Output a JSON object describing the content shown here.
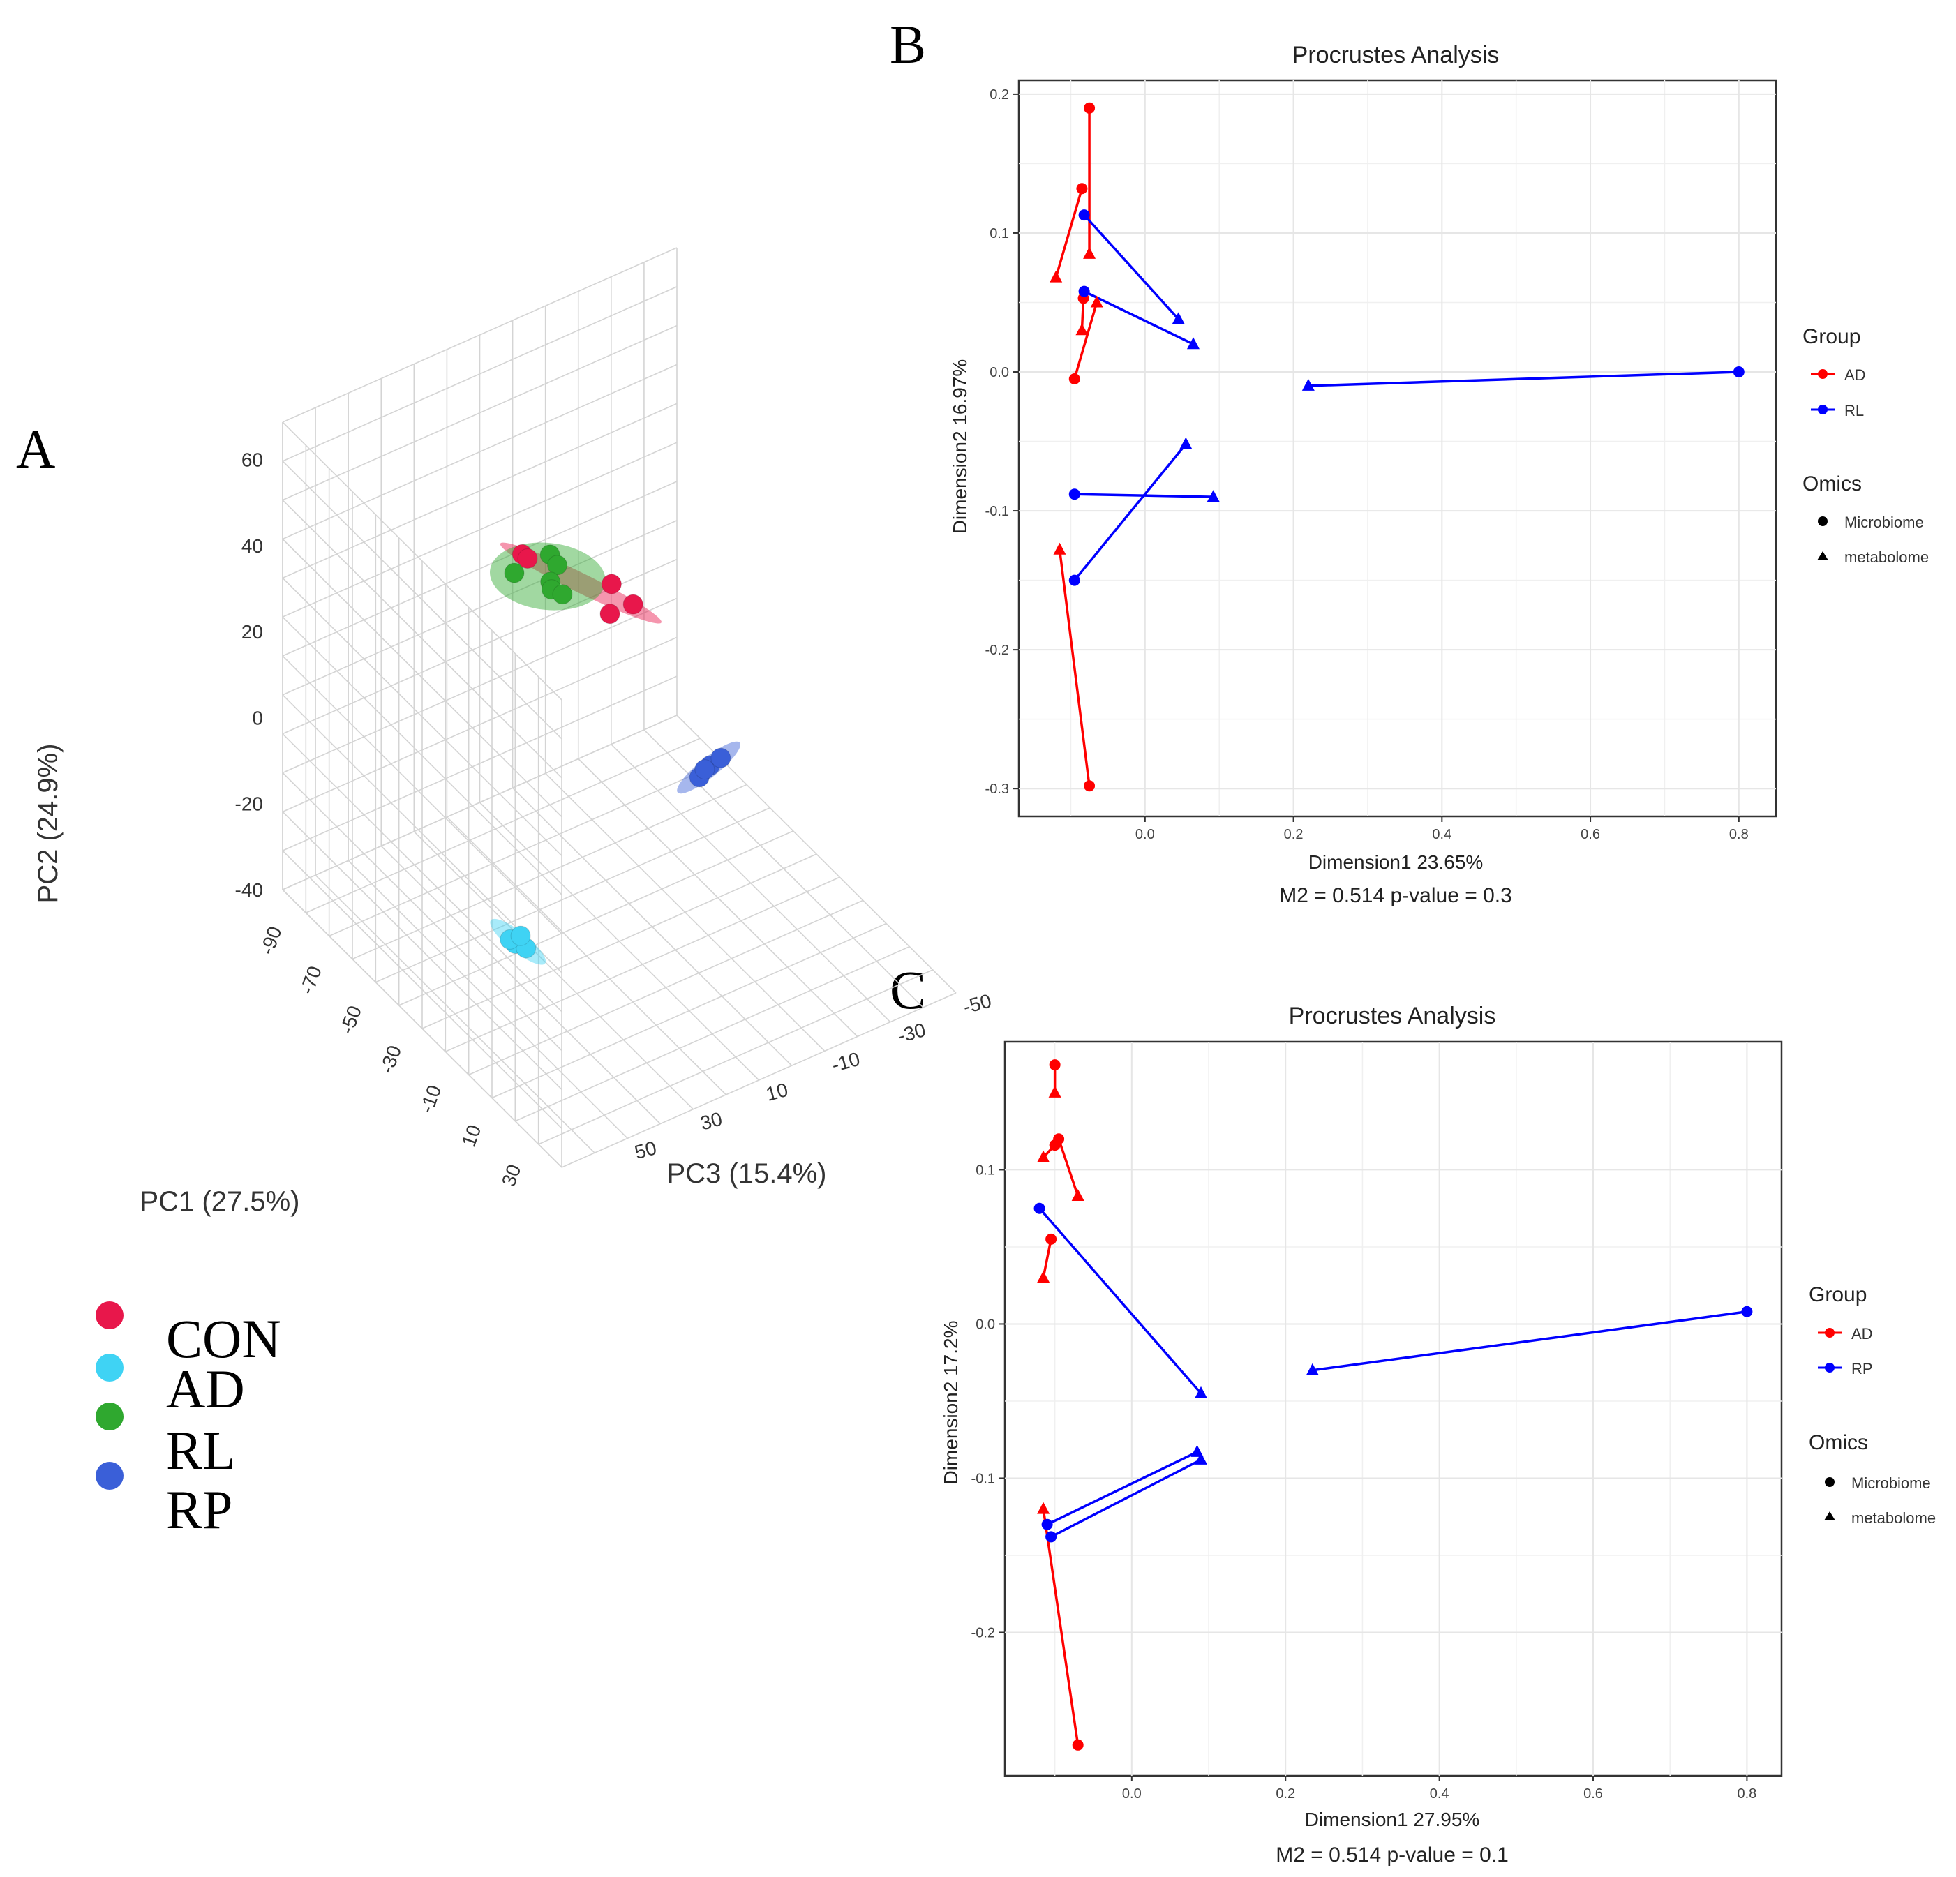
{
  "panel_labels": {
    "a": "A",
    "b": "B",
    "c": "C"
  },
  "colors": {
    "con": "#e8174b",
    "ad": "#3fd3f4",
    "rl": "#2fa82f",
    "rp": "#3a5fd8",
    "red": "#ff0000",
    "blue": "#0000ff",
    "grid": "#e6e6e6",
    "axis": "#333333"
  },
  "chart_data": [
    {
      "type": "scatter3d",
      "id": "pca",
      "title": "",
      "xlabel": "PC1 (27.5%)",
      "ylabel": "PC2 (24.9%)",
      "zlabel": "PC3 (15.4%)",
      "pc1_ticks": [
        "-90",
        "-70",
        "-50",
        "-30",
        "-10",
        "10",
        "30"
      ],
      "pc2_ticks": [
        "60",
        "40",
        "20",
        "0",
        "-20",
        "-40"
      ],
      "pc3_ticks": [
        "-50",
        "-30",
        "-10",
        "10",
        "30",
        "50"
      ],
      "legend": [
        "CON",
        "AD",
        "RL",
        "RP"
      ],
      "series": [
        {
          "name": "CON",
          "points": [
            [
              -85,
              20,
              -15
            ],
            [
              -84,
              19,
              -16
            ],
            [
              -55,
              22,
              -25
            ],
            [
              -50,
              18,
              -22
            ],
            [
              -45,
              21,
              -26
            ]
          ]
        },
        {
          "name": "AD",
          "points": [
            [
              10,
              -15,
              35
            ],
            [
              12,
              -16,
              33
            ],
            [
              9,
              -14,
              36
            ],
            [
              11,
              -13,
              34
            ]
          ]
        },
        {
          "name": "RL",
          "points": [
            [
              -40,
              45,
              10
            ],
            [
              -30,
              52,
              5
            ],
            [
              -20,
              55,
              8
            ],
            [
              -10,
              58,
              15
            ],
            [
              -35,
              40,
              2
            ],
            [
              -25,
              44,
              4
            ]
          ]
        },
        {
          "name": "RP",
          "points": [
            [
              -10,
              -5,
              -30
            ],
            [
              -12,
              -8,
              -28
            ],
            [
              -8,
              -3,
              -32
            ],
            [
              -11,
              -6,
              -29
            ]
          ]
        }
      ]
    },
    {
      "type": "scatter",
      "id": "procrustes_rl",
      "title": "Procrustes Analysis",
      "xlabel": "Dimension1 23.65%",
      "ylabel": "Dimension2 16.97%",
      "subtitle": "M2 = 0.514  p-value = 0.3",
      "xlim": [
        -0.17,
        0.85
      ],
      "ylim": [
        -0.32,
        0.21
      ],
      "xticks": [
        0.0,
        0.2,
        0.4,
        0.6,
        0.8
      ],
      "xtick_labels": [
        "0.0",
        "0.2",
        "0.4",
        "0.6",
        "0.8"
      ],
      "yticks": [
        0.2,
        0.1,
        0.0,
        -0.1,
        -0.2,
        -0.3
      ],
      "ytick_labels": [
        "0.2",
        "0.1",
        "0.0",
        "-0.1",
        "-0.2",
        "-0.3"
      ],
      "legend": {
        "group_title": "Group",
        "groups": [
          "AD",
          "RL"
        ],
        "omics_title": "Omics",
        "omics": [
          "Microbiome",
          "metabolome"
        ]
      },
      "pairs": [
        {
          "group": "AD",
          "microbiome": [
            -0.075,
            0.19
          ],
          "metabolome": [
            -0.075,
            0.085
          ]
        },
        {
          "group": "AD",
          "microbiome": [
            -0.085,
            0.132
          ],
          "metabolome": [
            -0.12,
            0.068
          ]
        },
        {
          "group": "AD",
          "microbiome": [
            -0.083,
            0.053
          ],
          "metabolome": [
            -0.085,
            0.03
          ]
        },
        {
          "group": "AD",
          "microbiome": [
            -0.095,
            -0.005
          ],
          "metabolome": [
            -0.065,
            0.05
          ]
        },
        {
          "group": "AD",
          "microbiome": [
            -0.075,
            -0.298
          ],
          "metabolome": [
            -0.115,
            -0.128
          ]
        },
        {
          "group": "RL",
          "microbiome": [
            -0.082,
            0.113
          ],
          "metabolome": [
            0.045,
            0.038
          ]
        },
        {
          "group": "RL",
          "microbiome": [
            -0.082,
            0.058
          ],
          "metabolome": [
            0.065,
            0.02
          ]
        },
        {
          "group": "RL",
          "microbiome": [
            0.8,
            0.0
          ],
          "metabolome": [
            0.22,
            -0.01
          ]
        },
        {
          "group": "RL",
          "microbiome": [
            -0.095,
            -0.088
          ],
          "metabolome": [
            0.092,
            -0.09
          ]
        },
        {
          "group": "RL",
          "microbiome": [
            -0.095,
            -0.15
          ],
          "metabolome": [
            0.055,
            -0.052
          ]
        }
      ]
    },
    {
      "type": "scatter",
      "id": "procrustes_rp",
      "title": "Procrustes Analysis",
      "xlabel": "Dimension1 27.95%",
      "ylabel": "Dimension2 17.2%",
      "subtitle": "M2 = 0.514  p-value = 0.1",
      "xlim": [
        -0.165,
        0.845
      ],
      "ylim": [
        -0.293,
        0.183
      ],
      "xticks": [
        0.0,
        0.2,
        0.4,
        0.6,
        0.8
      ],
      "xtick_labels": [
        "0.0",
        "0.2",
        "0.4",
        "0.6",
        "0.8"
      ],
      "yticks": [
        0.1,
        0.0,
        -0.1,
        -0.2
      ],
      "ytick_labels": [
        "0.1",
        "0.0",
        "-0.1",
        "-0.2"
      ],
      "legend": {
        "group_title": "Group",
        "groups": [
          "AD",
          "RP"
        ],
        "omics_title": "Omics",
        "omics": [
          "Microbiome",
          "metabolome"
        ]
      },
      "pairs": [
        {
          "group": "AD",
          "microbiome": [
            -0.1,
            0.168
          ],
          "metabolome": [
            -0.1,
            0.15
          ]
        },
        {
          "group": "AD",
          "microbiome": [
            -0.095,
            0.12
          ],
          "metabolome": [
            -0.07,
            0.083
          ]
        },
        {
          "group": "AD",
          "microbiome": [
            -0.1,
            0.116
          ],
          "metabolome": [
            -0.115,
            0.108
          ]
        },
        {
          "group": "AD",
          "microbiome": [
            -0.105,
            0.055
          ],
          "metabolome": [
            -0.115,
            0.03
          ]
        },
        {
          "group": "AD",
          "microbiome": [
            -0.07,
            -0.273
          ],
          "metabolome": [
            -0.115,
            -0.12
          ]
        },
        {
          "group": "RP",
          "microbiome": [
            -0.12,
            0.075
          ],
          "metabolome": [
            0.09,
            -0.045
          ]
        },
        {
          "group": "RP",
          "microbiome": [
            0.8,
            0.008
          ],
          "metabolome": [
            0.235,
            -0.03
          ]
        },
        {
          "group": "RP",
          "microbiome": [
            -0.11,
            -0.13
          ],
          "metabolome": [
            0.085,
            -0.083
          ]
        },
        {
          "group": "RP",
          "microbiome": [
            -0.105,
            -0.138
          ],
          "metabolome": [
            0.09,
            -0.088
          ]
        }
      ]
    }
  ]
}
